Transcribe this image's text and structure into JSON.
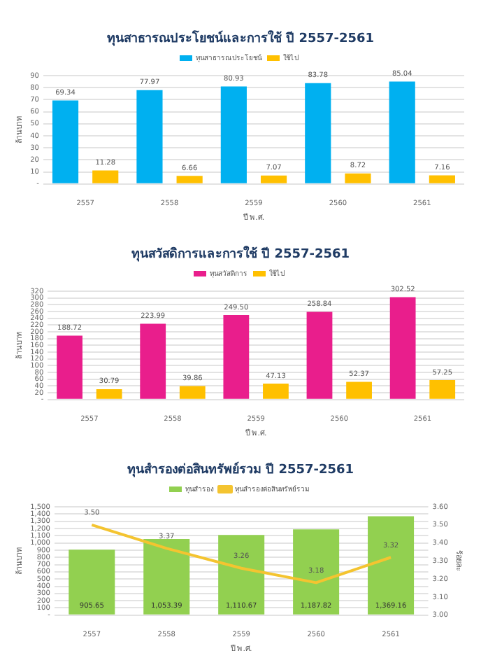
{
  "chart_data": [
    {
      "type": "bar",
      "title": "ทุนสาธารณประโยชน์และการใช้ ปี 2557-2561",
      "xlabel": "ปี พ.ศ.",
      "ylabel": "ล้านบาท",
      "categories": [
        "2557",
        "2558",
        "2559",
        "2560",
        "2561"
      ],
      "series": [
        {
          "name": "ทุนสาธารณประโยชน์",
          "color": "#00b0f0",
          "values": [
            69.34,
            77.97,
            80.93,
            83.78,
            85.04
          ],
          "value_labels": [
            "69.34",
            "77.97",
            "80.93",
            "83.78",
            "85.04"
          ]
        },
        {
          "name": "ใช้ไป",
          "color": "#ffc000",
          "values": [
            11.28,
            6.66,
            7.07,
            8.72,
            7.16
          ],
          "value_labels": [
            "11.28",
            "6.66",
            "7.07",
            "8.72",
            "7.16"
          ]
        }
      ],
      "ylim": [
        0,
        90
      ],
      "yticks": [
        {
          "value": 0,
          "label": "-"
        },
        10,
        20,
        30,
        40,
        50,
        60,
        70,
        80,
        90
      ],
      "grid": "y",
      "legend": "top"
    },
    {
      "type": "bar",
      "title": "ทุนสวัสดิการและการใช้ ปี 2557-2561",
      "xlabel": "ปี พ.ศ.",
      "ylabel": "ล้านบาท",
      "categories": [
        "2557",
        "2558",
        "2559",
        "2560",
        "2561"
      ],
      "series": [
        {
          "name": "ทุนสวัสดิการ",
          "color": "#e91e8c",
          "values": [
            188.72,
            223.99,
            249.5,
            258.84,
            302.52
          ],
          "value_labels": [
            "188.72",
            "223.99",
            "249.50",
            "258.84",
            "302.52"
          ]
        },
        {
          "name": "ใช้ไป",
          "color": "#ffc000",
          "values": [
            30.79,
            39.86,
            47.13,
            52.37,
            57.25
          ],
          "value_labels": [
            "30.79",
            "39.86",
            "47.13",
            "52.37",
            "57.25"
          ]
        }
      ],
      "ylim": [
        0,
        320
      ],
      "yticks": [
        {
          "value": 0,
          "label": "-"
        },
        20,
        40,
        60,
        80,
        100,
        120,
        140,
        160,
        180,
        200,
        220,
        240,
        260,
        280,
        300,
        320
      ],
      "grid": "y",
      "legend": "top"
    },
    {
      "type": "bar",
      "title": "ทุนสำรองต่อสินทรัพย์รวม ปี 2557-2561",
      "xlabel": "ปี พ.ศ.",
      "ylabel": "ล้านบาท",
      "y2label": "ร้อยละ",
      "categories": [
        "2557",
        "2558",
        "2559",
        "2560",
        "2561"
      ],
      "series": [
        {
          "name": "ทุนสำรอง",
          "color": "#92d050",
          "values": [
            905.65,
            1053.39,
            1110.67,
            1187.82,
            1369.16
          ],
          "value_labels": [
            "905.65",
            "1,053.39",
            "1,110.67",
            "1,187.82",
            "1,369.16"
          ]
        },
        {
          "name": "ทุนสำรองต่อสินทรัพย์รวม",
          "type": "line",
          "axis": "y2",
          "color": "#f4c430",
          "values": [
            3.5,
            3.37,
            3.26,
            3.18,
            3.32
          ],
          "value_labels": [
            "3.50",
            "3.37",
            "3.26",
            "3.18",
            "3.32"
          ]
        }
      ],
      "ylim": [
        0,
        1500
      ],
      "yticks": [
        {
          "value": 0,
          "label": "-"
        },
        100,
        200,
        300,
        400,
        500,
        600,
        700,
        800,
        900,
        {
          "value": 1000,
          "label": "1,000"
        },
        {
          "value": 1100,
          "label": "1,100"
        },
        {
          "value": 1200,
          "label": "1,200"
        },
        {
          "value": 1300,
          "label": "1,300"
        },
        {
          "value": 1400,
          "label": "1,400"
        },
        {
          "value": 1500,
          "label": "1,500"
        }
      ],
      "y2lim": [
        3,
        3.6
      ],
      "y2ticks": [
        {
          "value": 3,
          "label": "3.00"
        },
        {
          "value": 3.1,
          "label": "3.10"
        },
        {
          "value": 3.2,
          "label": "3.20"
        },
        {
          "value": 3.3,
          "label": "3.30"
        },
        {
          "value": 3.4,
          "label": "3.40"
        },
        {
          "value": 3.5,
          "label": "3.50"
        },
        {
          "value": 3.6,
          "label": "3.60"
        }
      ],
      "grid": "y",
      "legend": "top",
      "marker": "none"
    }
  ]
}
